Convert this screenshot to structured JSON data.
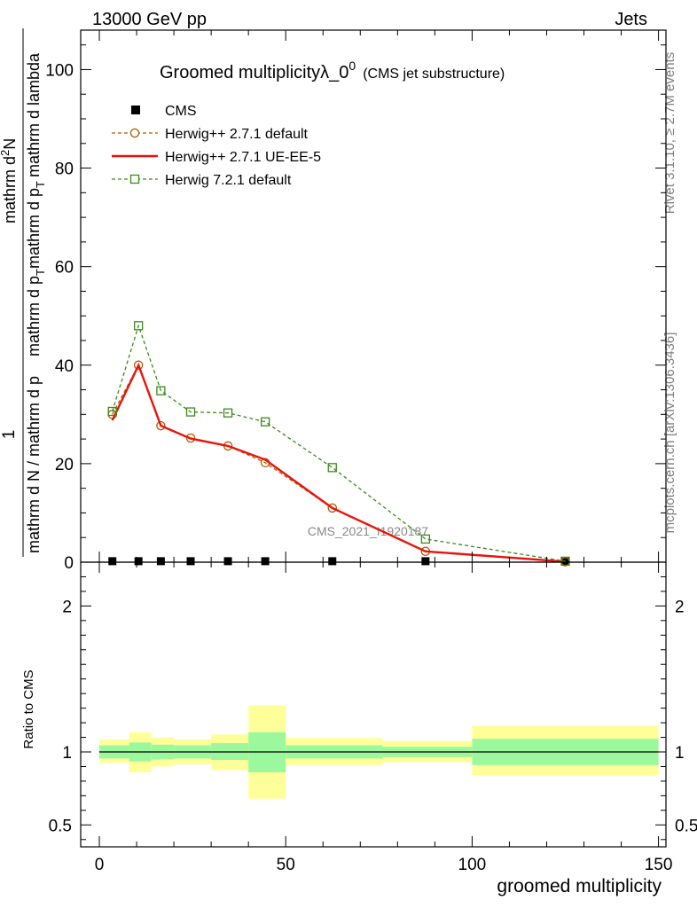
{
  "header": {
    "left": "13000 GeV pp",
    "right": "Jets"
  },
  "side_labels": {
    "rivet": "Rivet 3.1.10, ≥ 2.7M events",
    "mcplots": "mcplots.cern.ch [arXiv:1306.3436]"
  },
  "watermark": "CMS_2021_I1920187",
  "chart_data": [
    {
      "type": "line",
      "title": "Groomed multiplicityλ_0",
      "title_sup": "0",
      "subtitle": "(CMS jet substructure)",
      "ylabel_parts": {
        "one": "1",
        "main": "mathrm d N / mathrm d p",
        "top1": "mathrm d",
        "top2": "N",
        "bot1": "mathrm d p",
        "bot2": "mathrm d p",
        "bot3": "mathrm d lambda",
        "sub_T": "T",
        "sup_2": "2"
      },
      "xlim": [
        -5,
        152
      ],
      "ylim": [
        0,
        108
      ],
      "yticks": [
        0,
        20,
        40,
        60,
        80,
        100
      ],
      "ytick_labels": [
        "0",
        "20",
        "40",
        "60",
        "80",
        "100"
      ],
      "legend_placement": "top-left",
      "series": [
        {
          "name": "CMS",
          "color": "#000000",
          "marker": "filled-square",
          "x": [
            3.5,
            10.5,
            16.5,
            24.5,
            34.5,
            44.5,
            62.5,
            87.5,
            125
          ],
          "y": [
            0.2,
            0.2,
            0.2,
            0.2,
            0.2,
            0.2,
            0.2,
            0.2,
            0.2
          ]
        },
        {
          "name": "Herwig++ 2.7.1 default",
          "color": "#b35c00",
          "marker": "open-circle",
          "dash": "dashed",
          "x": [
            3.5,
            10.5,
            16.5,
            24.5,
            34.5,
            44.5,
            62.5,
            87.5,
            125
          ],
          "y": [
            30.0,
            40.0,
            27.7,
            25.2,
            23.6,
            20.2,
            11.0,
            2.2,
            0.1
          ]
        },
        {
          "name": "Herwig++ 2.7.1 UE-EE-5",
          "color": "#e8140c",
          "marker": "none",
          "dash": "solid",
          "x": [
            3.5,
            10.5,
            16.5,
            24.5,
            34.5,
            44.5,
            62.5,
            87.5,
            125
          ],
          "y": [
            28.8,
            40.0,
            27.7,
            25.1,
            23.6,
            20.8,
            11.0,
            2.2,
            0.1
          ]
        },
        {
          "name": "Herwig 7.2.1 default",
          "color": "#3a8a1a",
          "marker": "open-square",
          "dash": "dashed",
          "x": [
            3.5,
            10.5,
            16.5,
            24.5,
            34.5,
            44.5,
            62.5,
            87.5,
            125
          ],
          "y": [
            30.6,
            48.0,
            34.8,
            30.5,
            30.3,
            28.5,
            19.2,
            4.7,
            0.2
          ]
        }
      ]
    },
    {
      "type": "area",
      "ylabel": "Ratio to CMS",
      "xlabel": "groomed multiplicity",
      "xlim": [
        -5,
        152
      ],
      "ylim": [
        0.35,
        2.3
      ],
      "xticks": [
        0,
        50,
        100,
        150
      ],
      "xtick_labels": [
        "0",
        "50",
        "100",
        "150"
      ],
      "yticks": [
        0.5,
        1,
        2
      ],
      "ytick_labels": [
        "0.5",
        "1",
        "2"
      ],
      "bins": [
        {
          "lo": 0,
          "hi": 8,
          "inner": [
            0.955,
            1.045
          ],
          "outer": [
            0.925,
            1.085
          ]
        },
        {
          "lo": 8,
          "hi": 14,
          "inner": [
            0.935,
            1.065
          ],
          "outer": [
            0.86,
            1.135
          ]
        },
        {
          "lo": 14,
          "hi": 20,
          "inner": [
            0.95,
            1.05
          ],
          "outer": [
            0.9,
            1.1
          ]
        },
        {
          "lo": 20,
          "hi": 30,
          "inner": [
            0.955,
            1.045
          ],
          "outer": [
            0.915,
            1.085
          ]
        },
        {
          "lo": 30,
          "hi": 40,
          "inner": [
            0.945,
            1.06
          ],
          "outer": [
            0.875,
            1.12
          ]
        },
        {
          "lo": 40,
          "hi": 50,
          "inner": [
            0.86,
            1.135
          ],
          "outer": [
            0.68,
            1.32
          ]
        },
        {
          "lo": 50,
          "hi": 76,
          "inner": [
            0.955,
            1.045
          ],
          "outer": [
            0.91,
            1.095
          ]
        },
        {
          "lo": 76,
          "hi": 100,
          "inner": [
            0.965,
            1.035
          ],
          "outer": [
            0.93,
            1.075
          ]
        },
        {
          "lo": 100,
          "hi": 150,
          "inner": [
            0.91,
            1.09
          ],
          "outer": [
            0.84,
            1.18
          ]
        }
      ],
      "inner_color": "#9cf89c",
      "outer_color": "#ffff99"
    }
  ]
}
